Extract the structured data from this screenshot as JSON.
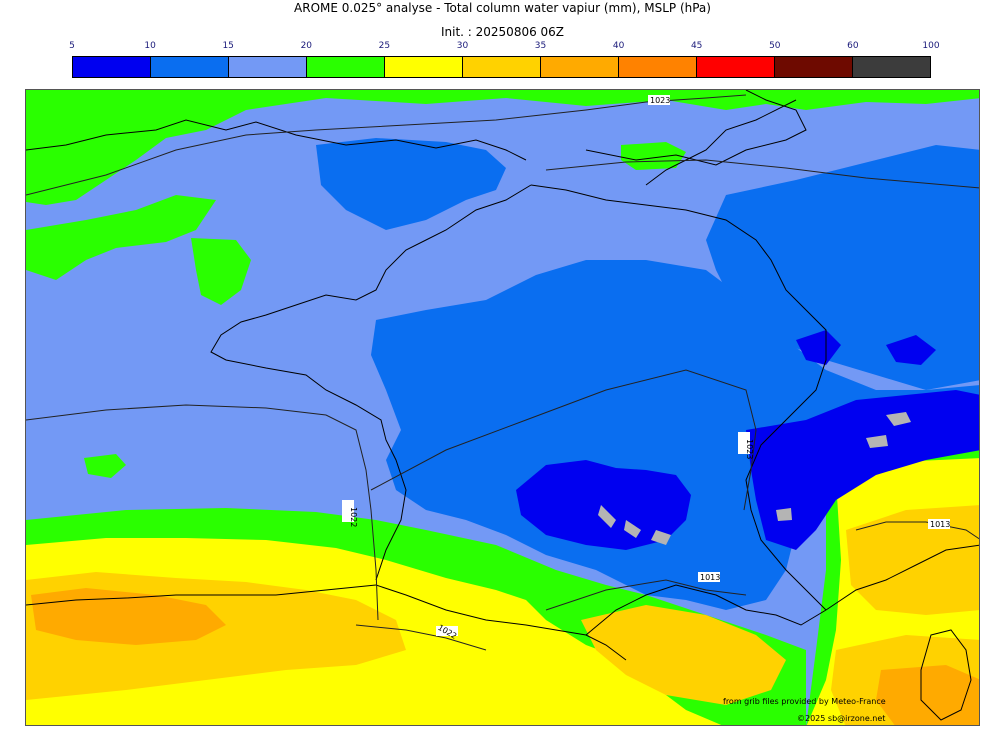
{
  "header": {
    "title": "AROME 0.025° analyse - Total column water vapiur (mm), MSLP (hPa)",
    "init": "Init. : 20250806 06Z"
  },
  "colorbar": {
    "ticks": [
      "5",
      "10",
      "15",
      "20",
      "25",
      "30",
      "35",
      "40",
      "45",
      "50",
      "60",
      "100"
    ],
    "colors": [
      "#0000f0",
      "#0a6ef0",
      "#7399f5",
      "#2aff00",
      "#ffff00",
      "#ffd200",
      "#ffaa00",
      "#ff8200",
      "#ff0000",
      "#6e0a00",
      "#3c3c3c"
    ]
  },
  "isobars": [
    "1023",
    "1023",
    "1022",
    "1022",
    "1013",
    "1013",
    "1022"
  ],
  "credits": {
    "source": "from grib files provided by Meteo-France",
    "copyright": "©2025 sb@irzone.net"
  }
}
